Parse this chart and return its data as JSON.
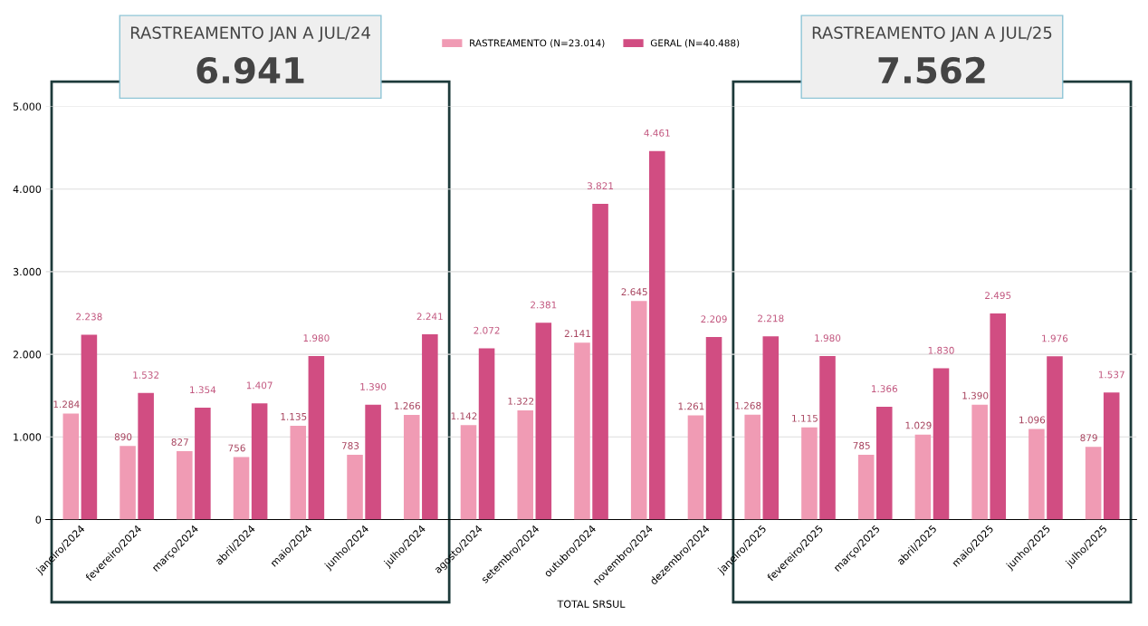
{
  "chart_data": {
    "type": "bar",
    "categories": [
      "janeiro/2024",
      "fevereiro/2024",
      "março/2024",
      "abril/2024",
      "maio/2024",
      "junho/2024",
      "julho/2024",
      "agosto/2024",
      "setembro/2024",
      "outubro/2024",
      "novembro/2024",
      "dezembro/2024",
      "janeiro/2025",
      "fevereiro/2025",
      "março/2025",
      "abril/2025",
      "maio/2025",
      "junho/2025",
      "julho/2025"
    ],
    "series": [
      {
        "name": "RASTREAMENTO (N=23.014)",
        "color": "#f09bb4",
        "values": [
          1284,
          890,
          827,
          756,
          1135,
          783,
          1266,
          1142,
          1322,
          2141,
          2645,
          1261,
          1268,
          1115,
          785,
          1029,
          1390,
          1096,
          879
        ],
        "value_labels": [
          "1.284",
          "890",
          "827",
          "756",
          "1.135",
          "783",
          "1.266",
          "1.142",
          "1.322",
          "2.141",
          "2.645",
          "1.261",
          "1.268",
          "1.115",
          "785",
          "1.029",
          "1.390",
          "1.096",
          "879"
        ]
      },
      {
        "name": "GERAL (N=40.488)",
        "color": "#d14d82",
        "values": [
          2238,
          1532,
          1354,
          1407,
          1980,
          1390,
          2241,
          2072,
          2381,
          3821,
          4461,
          2209,
          2218,
          1980,
          1366,
          1830,
          2495,
          1976,
          1537
        ],
        "value_labels": [
          "2.238",
          "1.532",
          "1.354",
          "1.407",
          "1.980",
          "1.390",
          "2.241",
          "2.072",
          "2.381",
          "3.821",
          "4.461",
          "2.209",
          "2.218",
          "1.980",
          "1.366",
          "1.830",
          "2.495",
          "1.976",
          "1.537"
        ]
      }
    ],
    "xlabel": "TOTAL SRSUL",
    "ylim": [
      0,
      5000
    ],
    "yticks": [
      {
        "value": 0,
        "label": "0"
      },
      {
        "value": 1000,
        "label": "1.000"
      },
      {
        "value": 2000,
        "label": "2.000"
      },
      {
        "value": 3000,
        "label": "3.000"
      },
      {
        "value": 4000,
        "label": "4.000"
      },
      {
        "value": 5000,
        "label": "5.000"
      }
    ],
    "grid": "y",
    "legend": "top",
    "annotations": [
      "RASTREAMENTO JAN A JUL/24",
      "6.941",
      "RASTREAMENTO JAN A JUL/25",
      "7.562"
    ]
  }
}
